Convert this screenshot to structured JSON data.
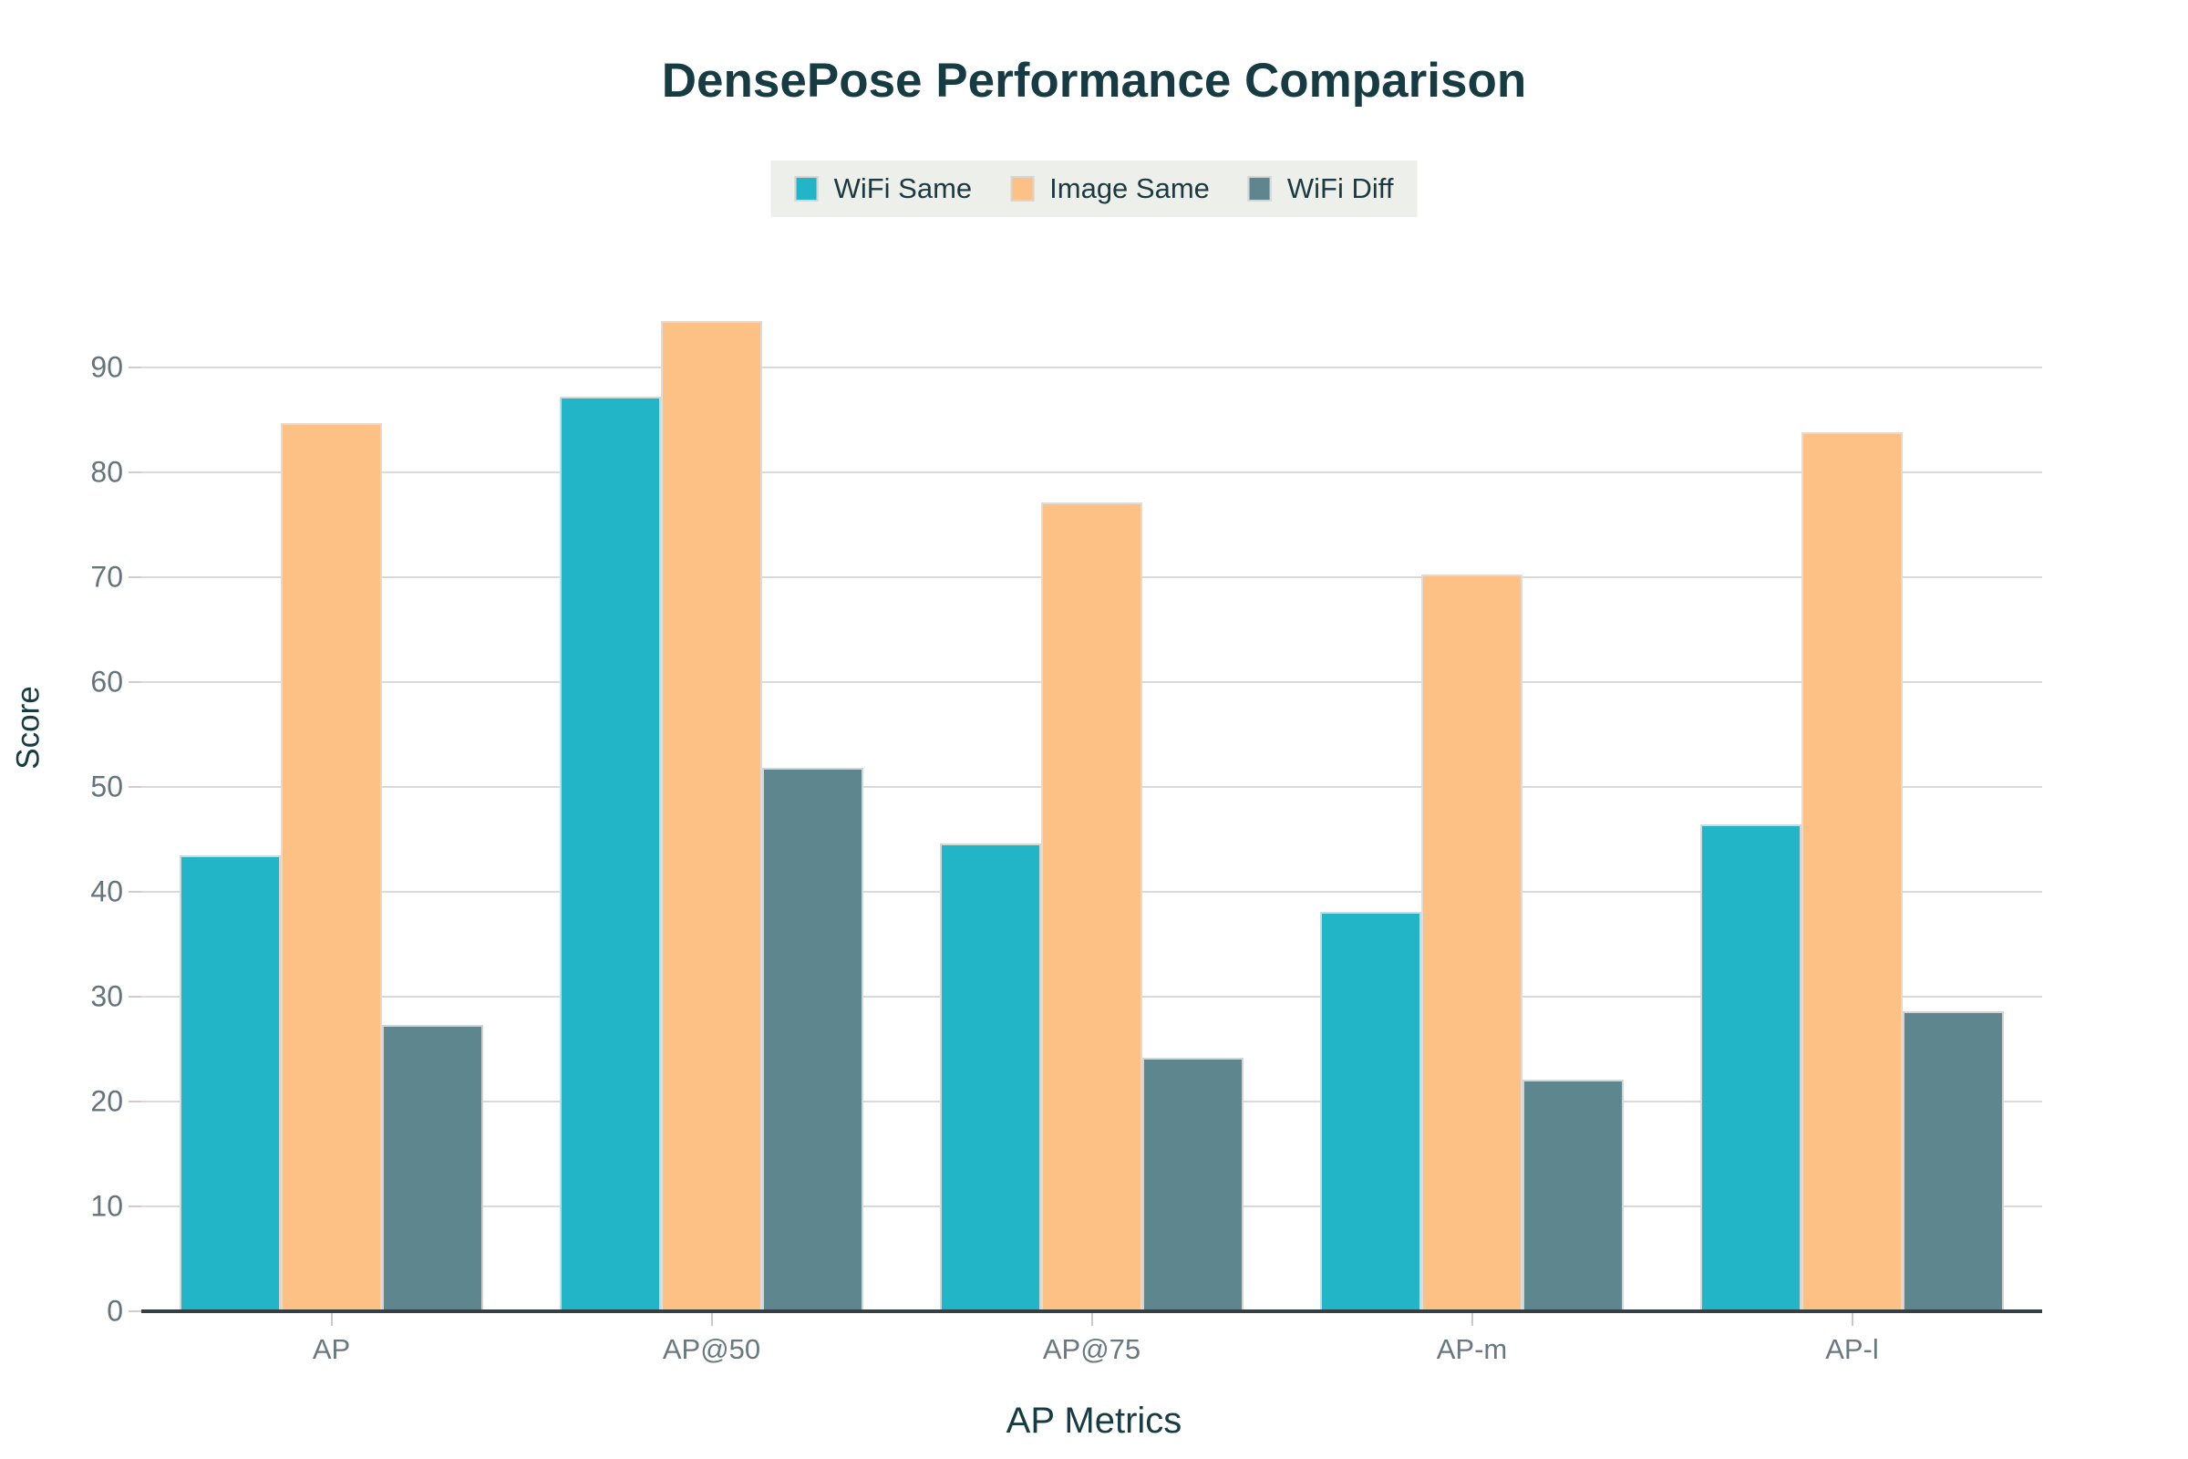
{
  "title": "DensePose Performance Comparison",
  "x_axis_title": "AP Metrics",
  "y_axis_title": "Score",
  "legend": {
    "items": [
      "WiFi Same",
      "Image Same",
      "WiFi Diff"
    ]
  },
  "colors": {
    "wifi_same": "#22b5c8",
    "image_same": "#fec185",
    "wifi_diff": "#5d868e",
    "title_text": "#163b42",
    "tick_text": "#697880",
    "gridline": "#dadada",
    "axis_line": "#363f44",
    "legend_background": "#edf0ea"
  },
  "chart_data": {
    "type": "bar",
    "title": "DensePose Performance Comparison",
    "xlabel": "AP Metrics",
    "ylabel": "Score",
    "categories": [
      "AP",
      "AP@50",
      "AP@75",
      "AP-m",
      "AP-l"
    ],
    "series": [
      {
        "name": "WiFi Same",
        "color": "#22b5c8",
        "values": [
          43.5,
          87.2,
          44.6,
          38.1,
          46.4
        ]
      },
      {
        "name": "Image Same",
        "color": "#fec185",
        "values": [
          84.7,
          94.4,
          77.1,
          70.3,
          83.8
        ]
      },
      {
        "name": "WiFi Diff",
        "color": "#5d868e",
        "values": [
          27.3,
          51.8,
          24.2,
          22.1,
          28.6
        ]
      }
    ],
    "ylim": [
      0,
      95
    ],
    "yticks": [
      0,
      10,
      20,
      30,
      40,
      50,
      60,
      70,
      80,
      90
    ],
    "grid": true,
    "legend_position": "top-center"
  }
}
